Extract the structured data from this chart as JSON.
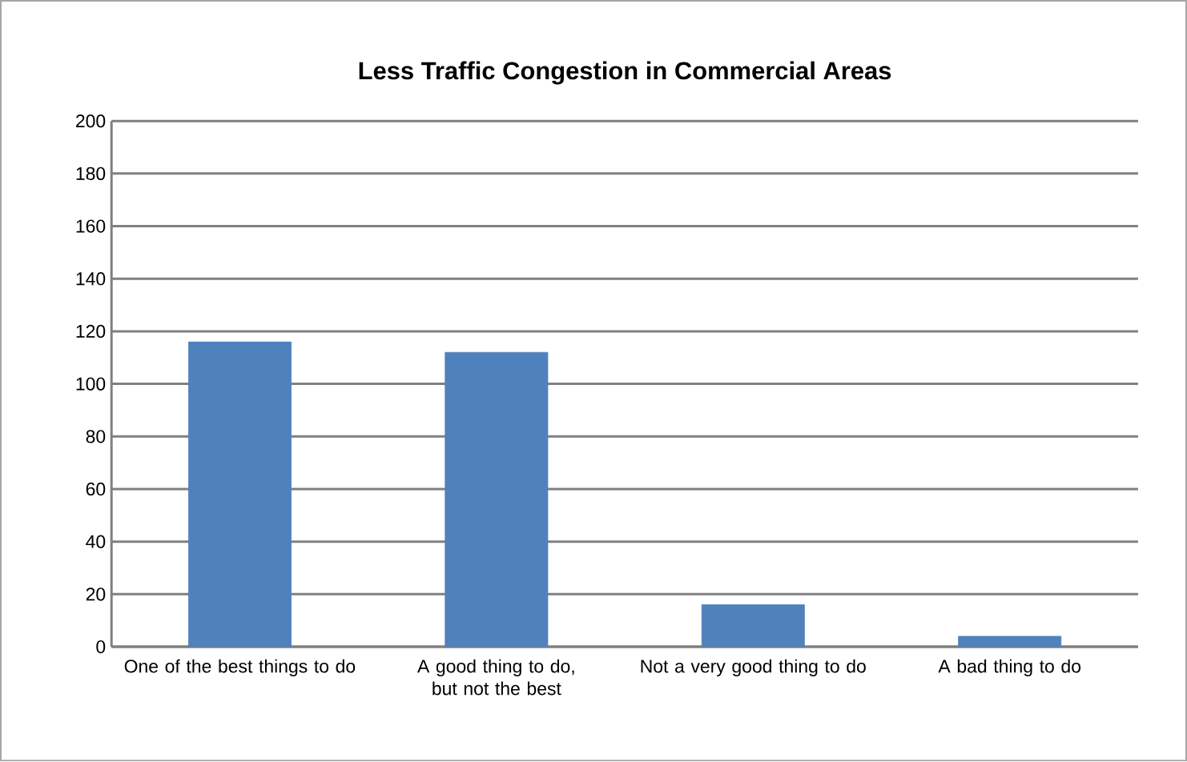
{
  "chart_data": {
    "type": "bar",
    "title": "Less Traffic Congestion in Commercial Areas",
    "categories": [
      "One of the best things to do",
      "A good thing to do, but not the best",
      "Not a very good thing to do",
      "A bad thing to do"
    ],
    "values": [
      116,
      112,
      16,
      4
    ],
    "color": "#4f81bd",
    "ylim": [
      0,
      200
    ],
    "yticks": [
      0,
      20,
      40,
      60,
      80,
      100,
      120,
      140,
      160,
      180,
      200
    ],
    "grid": "y"
  }
}
